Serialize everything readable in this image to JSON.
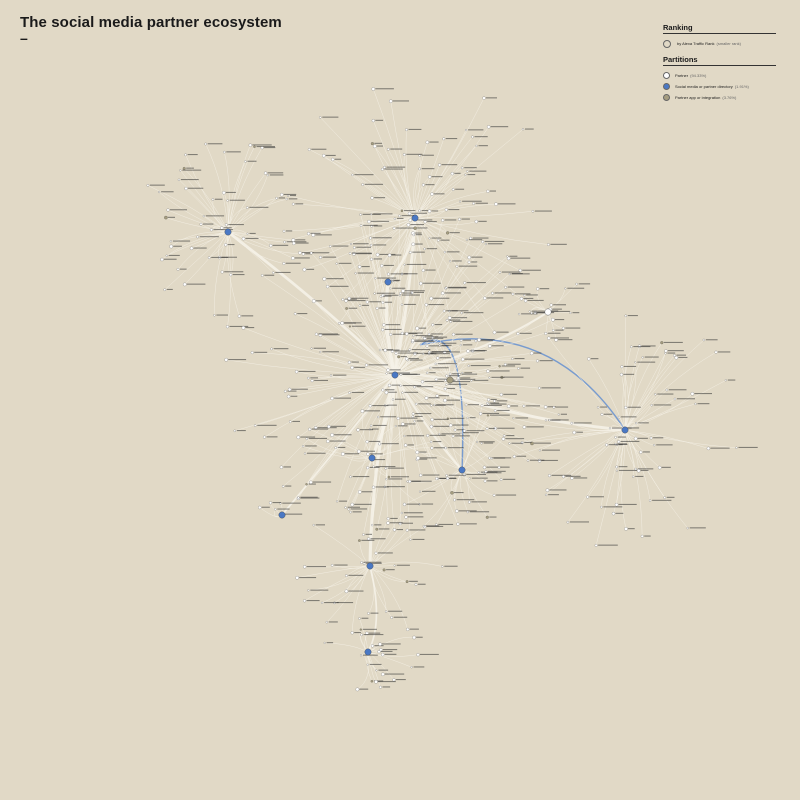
{
  "title": "The social media partner ecosystem",
  "title_dash": "–",
  "legend": {
    "ranking_heading": "Ranking",
    "ranking_label": "by Alexa Traffic Rank",
    "ranking_note": "(smaller rank)",
    "partitions_heading": "Partitions",
    "partitions": [
      {
        "label": "Partner",
        "share": "(94.33%)",
        "color": "#ffffff"
      },
      {
        "label": "Social media or partner directory",
        "share": "(1.91%)",
        "color": "#4a78c4"
      },
      {
        "label": "Partner app or integration",
        "share": "(3.76%)",
        "color": "#a59d80"
      }
    ]
  },
  "colors": {
    "background": "#e1d9c6",
    "edge": "#f6f2e9",
    "directory_edge": "#6c93cf",
    "partner_node": "#ffffff",
    "directory_node": "#4a78c4",
    "app_node": "#a59d80"
  },
  "clusters": [
    {
      "id": "north",
      "kind": "directory"
    },
    {
      "id": "west",
      "kind": "directory"
    },
    {
      "id": "center",
      "kind": "directory"
    },
    {
      "id": "center-east",
      "kind": "app"
    },
    {
      "id": "east-small",
      "kind": "partner"
    },
    {
      "id": "east",
      "kind": "directory"
    },
    {
      "id": "south-center",
      "kind": "directory"
    },
    {
      "id": "south-a",
      "kind": "directory"
    },
    {
      "id": "south-b",
      "kind": "directory"
    },
    {
      "id": "south-east",
      "kind": "directory"
    },
    {
      "id": "isolated",
      "kind": "directory"
    },
    {
      "id": "mid-north",
      "kind": "directory"
    }
  ]
}
